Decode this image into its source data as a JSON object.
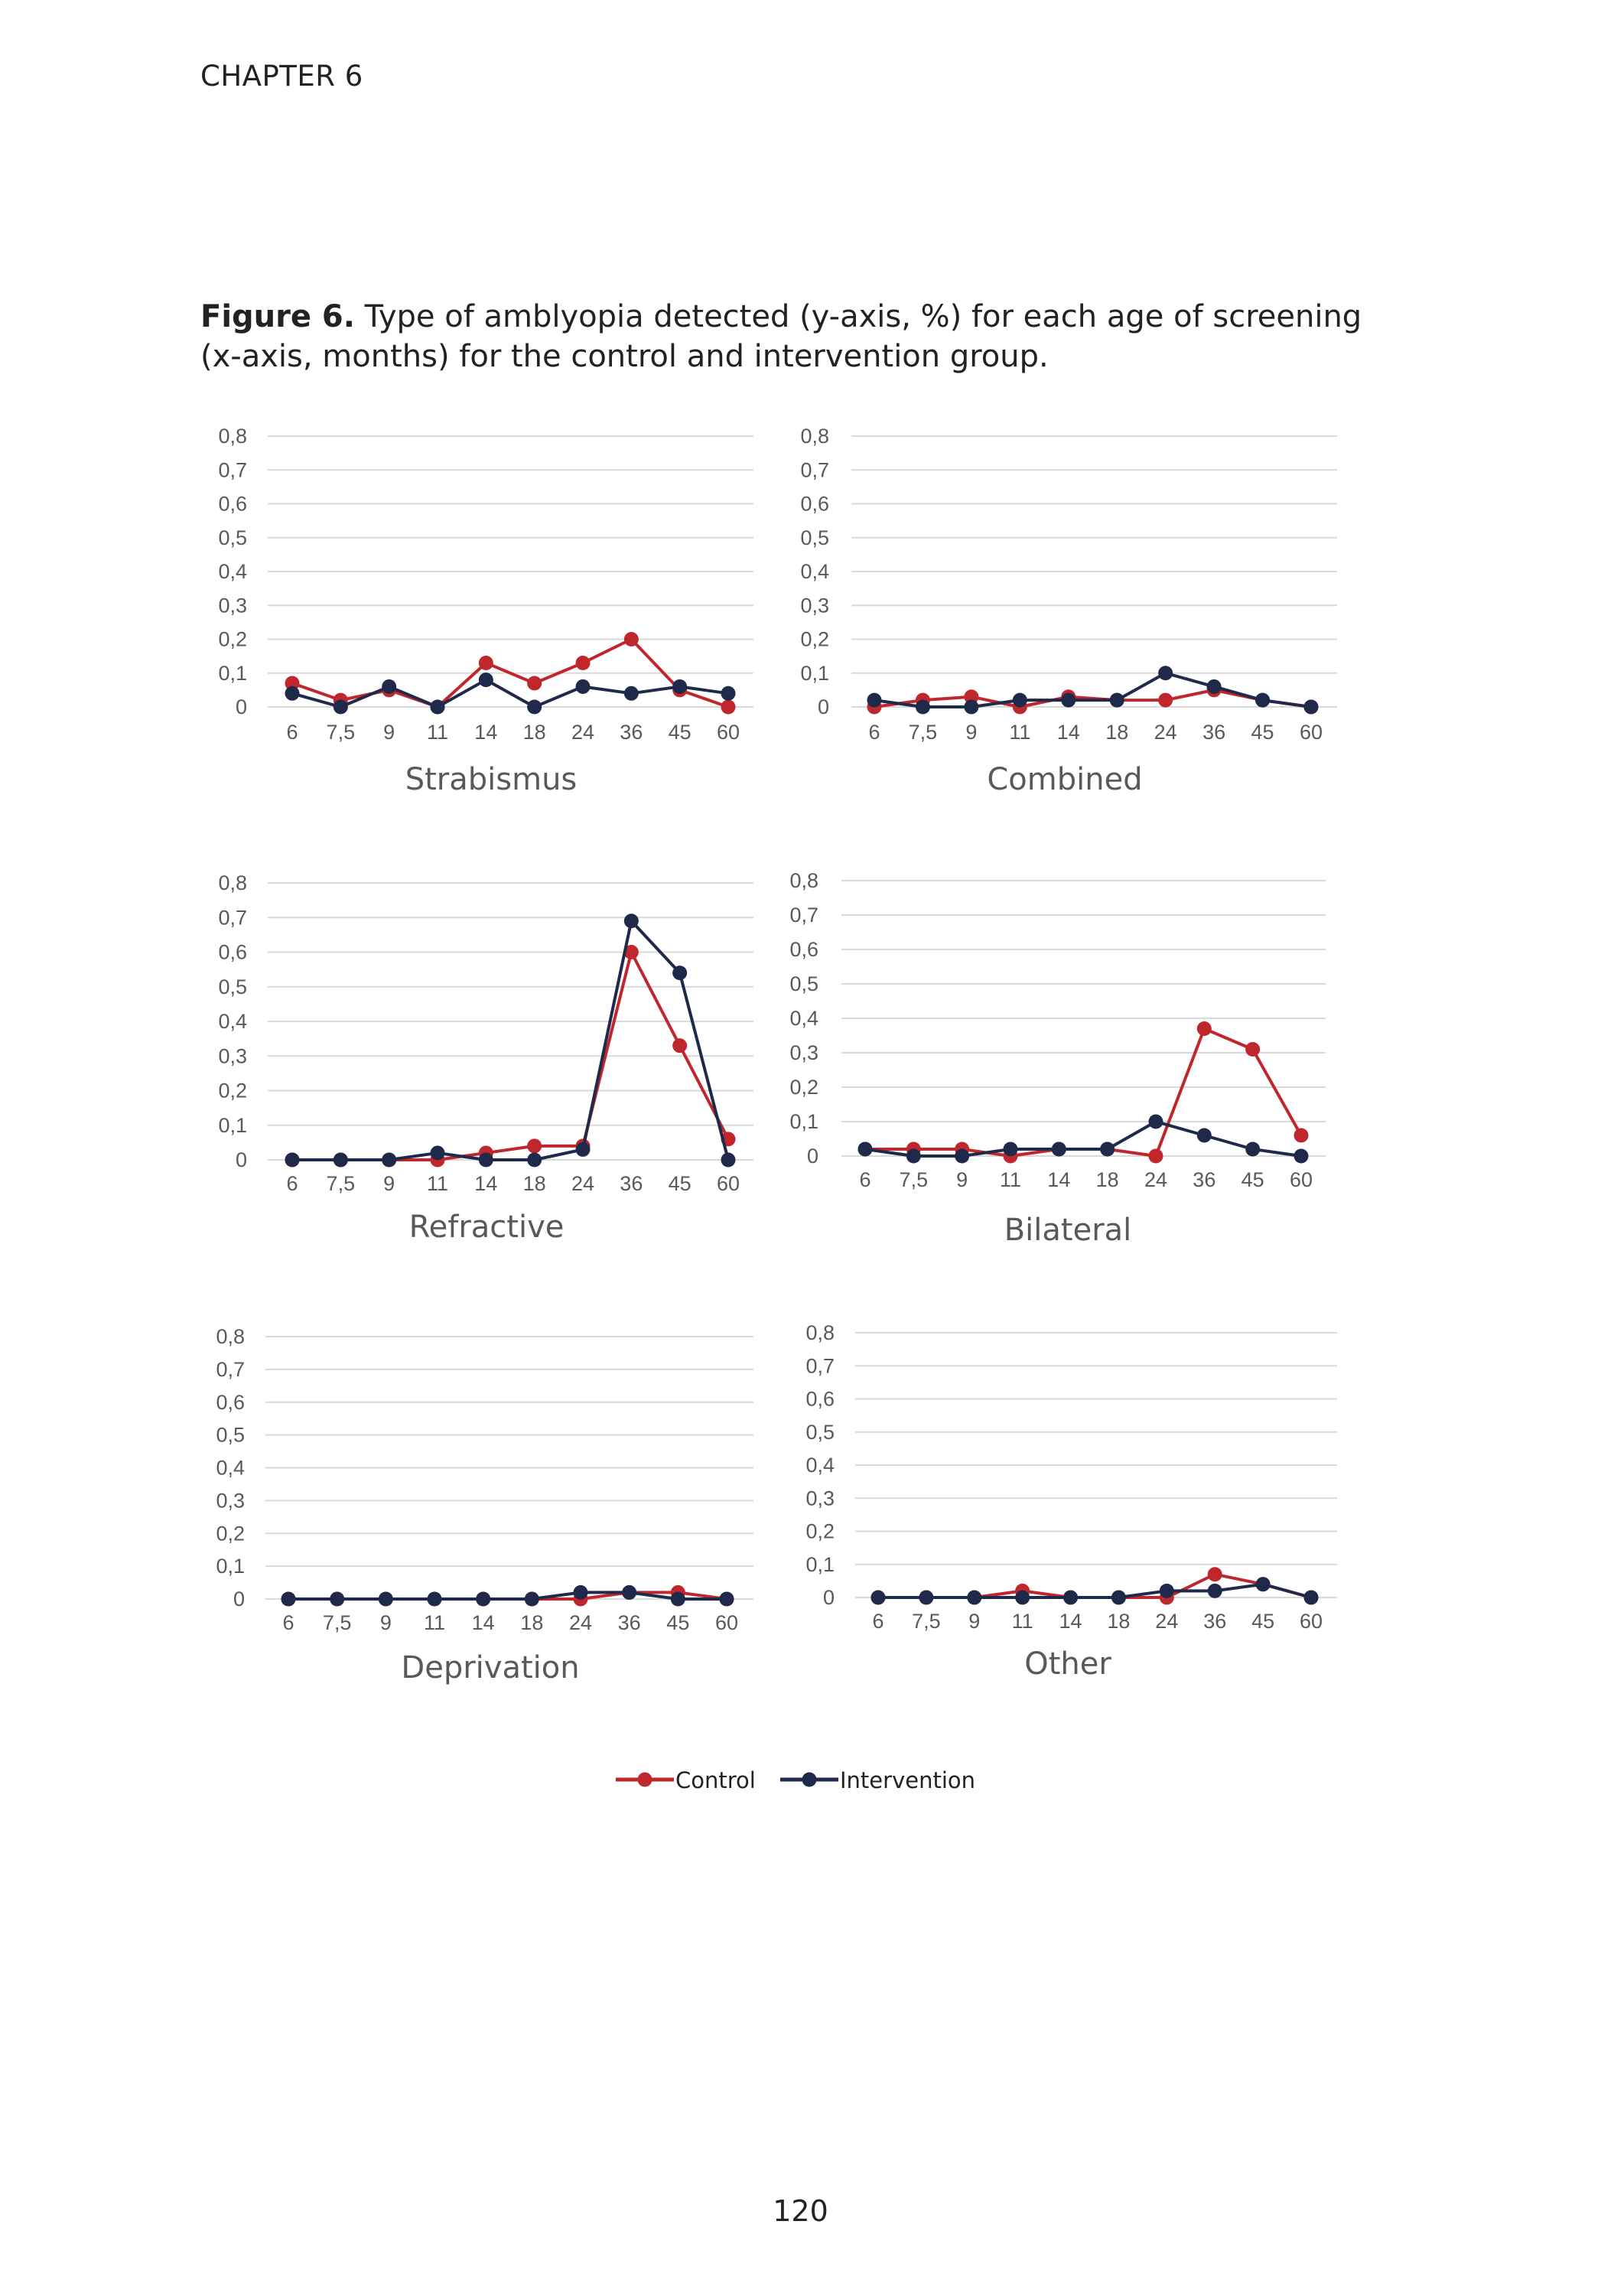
{
  "page": {
    "header": "CHAPTER 6",
    "caption_label": "Figure 6.",
    "caption_text": " Type of amblyopia detected (y-axis, %) for each age of screening (x-axis, months) for the control and intervention group.",
    "page_number": "120"
  },
  "colors": {
    "control": "#c0272d",
    "intervention": "#1f2a4a",
    "grid": "#d9d9d9",
    "axis_text": "#595959"
  },
  "legend": [
    {
      "name": "Control",
      "color": "#c0272d"
    },
    {
      "name": "Intervention",
      "color": "#1f2a4a"
    }
  ],
  "chart_data": [
    {
      "type": "line",
      "title": "Strabismus",
      "categories": [
        "6",
        "7,5",
        "9",
        "11",
        "14",
        "18",
        "24",
        "36",
        "45",
        "60"
      ],
      "y_ticks": [
        "0",
        "0,1",
        "0,2",
        "0,3",
        "0,4",
        "0,5",
        "0,6",
        "0,7",
        "0,8"
      ],
      "ylim": [
        0,
        0.8
      ],
      "grid": true,
      "legend": "bottom",
      "series": [
        {
          "name": "Control",
          "values": [
            0.07,
            0.02,
            0.05,
            0.0,
            0.13,
            0.07,
            0.13,
            0.2,
            0.05,
            0.0
          ]
        },
        {
          "name": "Intervention",
          "values": [
            0.04,
            0.0,
            0.06,
            0.0,
            0.08,
            0.0,
            0.06,
            0.04,
            0.06,
            0.04
          ]
        }
      ]
    },
    {
      "type": "line",
      "title": "Combined",
      "categories": [
        "6",
        "7,5",
        "9",
        "11",
        "14",
        "18",
        "24",
        "36",
        "45",
        "60"
      ],
      "y_ticks": [
        "0",
        "0,1",
        "0,2",
        "0,3",
        "0,4",
        "0,5",
        "0,6",
        "0,7",
        "0,8"
      ],
      "ylim": [
        0,
        0.8
      ],
      "grid": true,
      "legend": "bottom",
      "series": [
        {
          "name": "Control",
          "values": [
            0.0,
            0.02,
            0.03,
            0.0,
            0.03,
            0.02,
            0.02,
            0.05,
            0.02,
            0.0
          ]
        },
        {
          "name": "Intervention",
          "values": [
            0.02,
            0.0,
            0.0,
            0.02,
            0.02,
            0.02,
            0.1,
            0.06,
            0.02,
            0.0
          ]
        }
      ]
    },
    {
      "type": "line",
      "title": "Refractive",
      "categories": [
        "6",
        "7,5",
        "9",
        "11",
        "14",
        "18",
        "24",
        "36",
        "45",
        "60"
      ],
      "y_ticks": [
        "0",
        "0,1",
        "0,2",
        "0,3",
        "0,4",
        "0,5",
        "0,6",
        "0,7",
        "0,8"
      ],
      "ylim": [
        0,
        0.8
      ],
      "grid": true,
      "legend": "bottom",
      "series": [
        {
          "name": "Control",
          "values": [
            0.0,
            0.0,
            0.0,
            0.0,
            0.02,
            0.04,
            0.04,
            0.6,
            0.33,
            0.06
          ]
        },
        {
          "name": "Intervention",
          "values": [
            0.0,
            0.0,
            0.0,
            0.02,
            0.0,
            0.0,
            0.03,
            0.69,
            0.54,
            0.0
          ]
        }
      ]
    },
    {
      "type": "line",
      "title": "Bilateral",
      "categories": [
        "6",
        "7,5",
        "9",
        "11",
        "14",
        "18",
        "24",
        "36",
        "45",
        "60"
      ],
      "y_ticks": [
        "0",
        "0,1",
        "0,2",
        "0,3",
        "0,4",
        "0,5",
        "0,6",
        "0,7",
        "0,8"
      ],
      "ylim": [
        0,
        0.8
      ],
      "grid": true,
      "legend": "bottom",
      "series": [
        {
          "name": "Control",
          "values": [
            0.02,
            0.02,
            0.02,
            0.0,
            0.02,
            0.02,
            0.0,
            0.37,
            0.31,
            0.06
          ]
        },
        {
          "name": "Intervention",
          "values": [
            0.02,
            0.0,
            0.0,
            0.02,
            0.02,
            0.02,
            0.1,
            0.06,
            0.02,
            0.0
          ]
        }
      ]
    },
    {
      "type": "line",
      "title": "Deprivation",
      "categories": [
        "6",
        "7,5",
        "9",
        "11",
        "14",
        "18",
        "24",
        "36",
        "45",
        "60"
      ],
      "y_ticks": [
        "0",
        "0,1",
        "0,2",
        "0,3",
        "0,4",
        "0,5",
        "0,6",
        "0,7",
        "0,8"
      ],
      "ylim": [
        0,
        0.8
      ],
      "grid": true,
      "legend": "bottom",
      "series": [
        {
          "name": "Control",
          "values": [
            0.0,
            0.0,
            0.0,
            0.0,
            0.0,
            0.0,
            0.0,
            0.02,
            0.02,
            0.0
          ]
        },
        {
          "name": "Intervention",
          "values": [
            0.0,
            0.0,
            0.0,
            0.0,
            0.0,
            0.0,
            0.02,
            0.02,
            0.0,
            0.0
          ]
        }
      ]
    },
    {
      "type": "line",
      "title": "Other",
      "categories": [
        "6",
        "7,5",
        "9",
        "11",
        "14",
        "18",
        "24",
        "36",
        "45",
        "60"
      ],
      "y_ticks": [
        "0",
        "0,1",
        "0,2",
        "0,3",
        "0,4",
        "0,5",
        "0,6",
        "0,7",
        "0,8"
      ],
      "ylim": [
        0,
        0.8
      ],
      "grid": true,
      "legend": "bottom",
      "series": [
        {
          "name": "Control",
          "values": [
            0.0,
            0.0,
            0.0,
            0.02,
            0.0,
            0.0,
            0.0,
            0.07,
            0.04,
            0.0
          ]
        },
        {
          "name": "Intervention",
          "values": [
            0.0,
            0.0,
            0.0,
            0.0,
            0.0,
            0.0,
            0.02,
            0.02,
            0.04,
            0.0
          ]
        }
      ]
    }
  ]
}
